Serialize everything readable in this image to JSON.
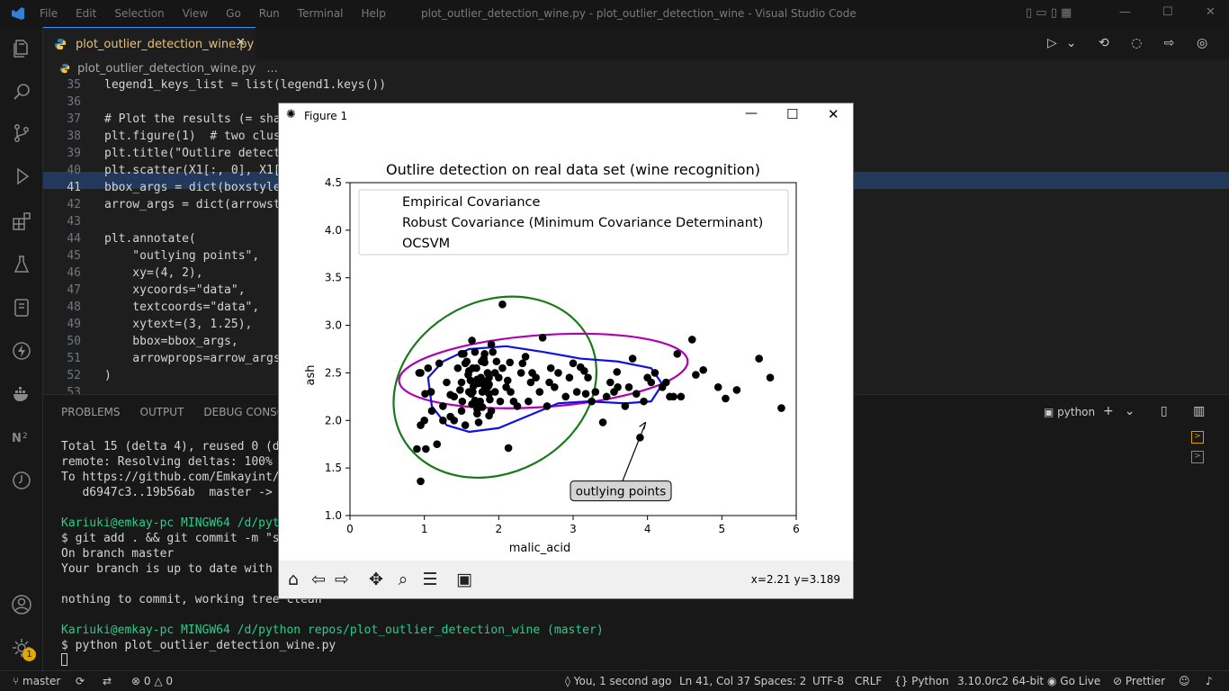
{
  "window": {
    "title": "plot_outlier_detection_wine.py - plot_outlier_detection_wine - Visual Studio Code",
    "menu": [
      "File",
      "Edit",
      "Selection",
      "View",
      "Go",
      "Run",
      "Terminal",
      "Help"
    ]
  },
  "tab": {
    "label": "plot_outlier_detection_wine.py",
    "close": "✕"
  },
  "breadcrumb": {
    "file": "plot_outlier_detection_wine.py",
    "more": "..."
  },
  "editor": {
    "lines": [
      {
        "n": "35",
        "t": "legend1_keys_list = list(legend1.keys())"
      },
      {
        "n": "36",
        "t": ""
      },
      {
        "n": "37",
        "t": "# Plot the results (= sha"
      },
      {
        "n": "38",
        "t": "plt.figure(1)  # two clus"
      },
      {
        "n": "39",
        "t": "plt.title(\"Outlire detect"
      },
      {
        "n": "40",
        "t": "plt.scatter(X1[:, 0], X1["
      },
      {
        "n": "41",
        "t": "bbox_args = dict(boxstyle"
      },
      {
        "n": "42",
        "t": "arrow_args = dict(arrowst"
      },
      {
        "n": "43",
        "t": ""
      },
      {
        "n": "44",
        "t": "plt.annotate("
      },
      {
        "n": "45",
        "t": "    \"outlying points\","
      },
      {
        "n": "46",
        "t": "    xy=(4, 2),"
      },
      {
        "n": "47",
        "t": "    xycoords=\"data\","
      },
      {
        "n": "48",
        "t": "    textcoords=\"data\","
      },
      {
        "n": "49",
        "t": "    xytext=(3, 1.25),"
      },
      {
        "n": "50",
        "t": "    bbox=bbox_args,"
      },
      {
        "n": "51",
        "t": "    arrowprops=arrow_args"
      },
      {
        "n": "52",
        "t": ")"
      },
      {
        "n": "53",
        "t": ""
      }
    ]
  },
  "panel": {
    "tabs": [
      "PROBLEMS",
      "OUTPUT",
      "DEBUG CONSOLE"
    ],
    "shell": "python",
    "lines": [
      "Total 15 (delta 4), reused 0 (delta",
      "remote: Resolving deltas: 100% (4/4",
      "To https://github.com/Emkayint/plot",
      "   d6947c3..19b56ab  master -> mast",
      "",
      "Kariuki@emkay-pc MINGW64 /d/python",
      "$ git add . && git commit -m \"show",
      "On branch master",
      "Your branch is up to date with 'ori",
      "",
      "nothing to commit, working tree clean",
      "",
      "Kariuki@emkay-pc MINGW64 /d/python repos/plot_outlier_detection_wine (master)",
      "$ python plot_outlier_detection_wine.py"
    ]
  },
  "status": {
    "branch": "master",
    "errors": "0",
    "warnings": "0",
    "blame": "You, 1 second ago",
    "position": "Ln 41, Col 37",
    "spaces": "Spaces: 2",
    "encoding": "UTF-8",
    "eol": "CRLF",
    "language": "Python",
    "interpreter": "3.10.0rc2 64-bit",
    "golive": "Go Live",
    "prettier": "Prettier",
    "badge": "1"
  },
  "figure": {
    "window_title": "Figure 1",
    "coords": "x=2.21 y=3.189"
  },
  "chart_data": {
    "type": "scatter",
    "title": "Outlire detection on real data set (wine recognition)",
    "xlabel": "malic_acid",
    "ylabel": "ash",
    "xlim": [
      0,
      6
    ],
    "ylim": [
      1.0,
      4.5
    ],
    "xticks": [
      "0",
      "1",
      "2",
      "3",
      "4",
      "5",
      "6"
    ],
    "yticks": [
      "1.0",
      "1.5",
      "2.0",
      "2.5",
      "3.0",
      "3.5",
      "4.0",
      "4.5"
    ],
    "legend": [
      "Empirical Covariance",
      "Robust Covariance (Minimum Covariance Determinant)",
      "OCSVM"
    ],
    "legend_position": "top",
    "colors": {
      "points": "#000000",
      "empirical": "#1a7a1a",
      "robust": "#b000b0",
      "ocsvm": "#1010e0"
    },
    "annotation": {
      "text": "outlying points",
      "xy": [
        4,
        2
      ],
      "xytext": [
        3,
        1.25
      ]
    },
    "points": [
      [
        1.71,
        2.43
      ],
      [
        1.78,
        2.14
      ],
      [
        2.36,
        2.67
      ],
      [
        1.95,
        2.5
      ],
      [
        2.59,
        2.87
      ],
      [
        1.76,
        2.45
      ],
      [
        1.87,
        2.45
      ],
      [
        2.15,
        2.61
      ],
      [
        1.64,
        2.17
      ],
      [
        1.35,
        2.27
      ],
      [
        2.16,
        2.3
      ],
      [
        1.48,
        2.32
      ],
      [
        1.73,
        2.41
      ],
      [
        1.73,
        2.39
      ],
      [
        1.87,
        2.38
      ],
      [
        1.81,
        2.7
      ],
      [
        1.92,
        2.72
      ],
      [
        1.57,
        2.62
      ],
      [
        1.59,
        2.48
      ],
      [
        3.1,
        2.56
      ],
      [
        1.63,
        2.28
      ],
      [
        3.8,
        2.65
      ],
      [
        1.86,
        2.36
      ],
      [
        1.6,
        2.52
      ],
      [
        1.81,
        2.61
      ],
      [
        2.05,
        3.22
      ],
      [
        1.77,
        2.62
      ],
      [
        1.72,
        2.14
      ],
      [
        1.9,
        2.8
      ],
      [
        1.68,
        2.21
      ],
      [
        1.5,
        2.7
      ],
      [
        1.66,
        2.36
      ],
      [
        1.83,
        2.36
      ],
      [
        1.53,
        2.7
      ],
      [
        1.8,
        2.65
      ],
      [
        1.81,
        2.41
      ],
      [
        1.64,
        2.84
      ],
      [
        1.65,
        2.55
      ],
      [
        1.5,
        2.1
      ],
      [
        3.59,
        2.51
      ],
      [
        1.83,
        2.31
      ],
      [
        1.71,
        2.12
      ],
      [
        2.68,
        2.4
      ],
      [
        1.02,
        1.7
      ],
      [
        3.17,
        2.28
      ],
      [
        1.51,
        2.2
      ],
      [
        1.73,
        1.98
      ],
      [
        1.87,
        2.05
      ],
      [
        1.68,
        2.72
      ],
      [
        2.43,
        2.4
      ],
      [
        1.09,
        2.3
      ],
      [
        1.17,
        1.75
      ],
      [
        1.87,
        2.28
      ],
      [
        0.95,
        1.36
      ],
      [
        1.81,
        2.36
      ],
      [
        1.35,
        2.04
      ],
      [
        1.71,
        2.07
      ],
      [
        2.13,
        1.71
      ],
      [
        1.97,
        2.62
      ],
      [
        0.93,
        2.5
      ],
      [
        1.25,
        2.15
      ],
      [
        1.0,
        2.0
      ],
      [
        0.95,
        2.5
      ],
      [
        1.01,
        2.28
      ],
      [
        1.1,
        2.1
      ],
      [
        1.2,
        2.6
      ],
      [
        1.3,
        2.4
      ],
      [
        1.4,
        2.0
      ],
      [
        1.55,
        1.95
      ],
      [
        1.6,
        2.3
      ],
      [
        1.7,
        2.55
      ],
      [
        1.9,
        2.1
      ],
      [
        2.0,
        2.45
      ],
      [
        2.1,
        2.35
      ],
      [
        2.2,
        2.2
      ],
      [
        2.3,
        2.5
      ],
      [
        2.5,
        2.45
      ],
      [
        2.55,
        2.3
      ],
      [
        2.8,
        2.5
      ],
      [
        2.9,
        2.25
      ],
      [
        3.0,
        2.6
      ],
      [
        3.2,
        2.45
      ],
      [
        3.3,
        2.3
      ],
      [
        3.45,
        2.25
      ],
      [
        3.6,
        2.35
      ],
      [
        3.7,
        2.15
      ],
      [
        3.75,
        2.35
      ],
      [
        4.0,
        2.45
      ],
      [
        4.2,
        2.35
      ],
      [
        4.3,
        2.25
      ],
      [
        4.4,
        2.7
      ],
      [
        4.6,
        2.85
      ],
      [
        4.65,
        2.48
      ],
      [
        4.75,
        2.53
      ],
      [
        4.95,
        2.35
      ],
      [
        5.05,
        2.23
      ],
      [
        5.2,
        2.32
      ],
      [
        5.5,
        2.65
      ],
      [
        5.65,
        2.45
      ],
      [
        5.8,
        2.13
      ],
      [
        3.4,
        1.98
      ],
      [
        3.9,
        1.82
      ],
      [
        4.1,
        2.5
      ],
      [
        0.9,
        1.7
      ],
      [
        0.95,
        1.95
      ],
      [
        1.05,
        2.55
      ],
      [
        1.25,
        2.0
      ],
      [
        1.4,
        2.25
      ],
      [
        1.5,
        2.4
      ],
      [
        1.55,
        2.6
      ],
      [
        1.65,
        2.3
      ],
      [
        1.75,
        2.2
      ],
      [
        1.85,
        2.5
      ],
      [
        1.95,
        2.3
      ],
      [
        2.05,
        2.55
      ],
      [
        2.25,
        2.15
      ],
      [
        2.4,
        2.2
      ],
      [
        2.65,
        2.15
      ],
      [
        2.75,
        2.35
      ],
      [
        3.05,
        2.3
      ],
      [
        3.15,
        2.52
      ],
      [
        3.5,
        2.4
      ],
      [
        3.85,
        2.28
      ],
      [
        3.95,
        2.2
      ],
      [
        4.05,
        2.4
      ],
      [
        4.25,
        2.4
      ],
      [
        4.35,
        2.25
      ],
      [
        1.45,
        2.55
      ],
      [
        1.62,
        2.42
      ],
      [
        1.78,
        2.3
      ],
      [
        1.88,
        2.22
      ],
      [
        2.02,
        2.2
      ],
      [
        2.12,
        2.42
      ],
      [
        2.32,
        2.6
      ],
      [
        2.45,
        2.5
      ],
      [
        2.7,
        2.55
      ],
      [
        2.95,
        2.45
      ],
      [
        3.25,
        2.2
      ],
      [
        3.55,
        2.3
      ],
      [
        4.45,
        2.25
      ]
    ]
  }
}
